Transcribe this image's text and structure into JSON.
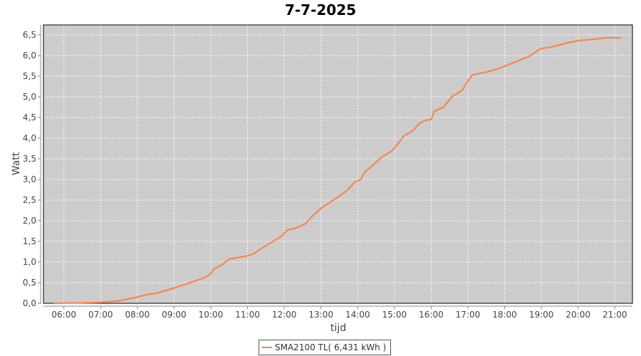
{
  "chart_data": {
    "type": "line",
    "title": "7-7-2025",
    "xlabel": "tijd",
    "ylabel": "Watt",
    "xlim": [
      "05:35",
      "21:30"
    ],
    "ylim": [
      0,
      6.75
    ],
    "grid": true,
    "legend_placement": "bottom",
    "x_ticks": [
      "06:00",
      "07:00",
      "08:00",
      "09:00",
      "10:00",
      "11:00",
      "12:00",
      "13:00",
      "14:00",
      "15:00",
      "16:00",
      "17:00",
      "18:00",
      "19:00",
      "20:00",
      "21:00"
    ],
    "y_ticks": [
      "0,0",
      "0,5",
      "1,0",
      "1,5",
      "2,0",
      "2,5",
      "3,0",
      "3,5",
      "4,0",
      "4,5",
      "5,0",
      "5,5",
      "6,0",
      "6,5"
    ],
    "series": [
      {
        "name": "SMA2100 TL( 6,431 kWh )",
        "color": "#ff7f3f",
        "x": [
          "05:43",
          "06:30",
          "07:00",
          "07:30",
          "08:00",
          "08:15",
          "08:30",
          "09:00",
          "09:30",
          "09:50",
          "10:00",
          "10:05",
          "10:20",
          "10:30",
          "11:00",
          "11:10",
          "11:25",
          "11:40",
          "11:55",
          "12:05",
          "12:20",
          "12:35",
          "12:45",
          "13:00",
          "13:20",
          "13:40",
          "13:55",
          "14:05",
          "14:10",
          "14:25",
          "14:40",
          "14:55",
          "15:05",
          "15:15",
          "15:30",
          "15:40",
          "15:50",
          "16:00",
          "16:05",
          "16:20",
          "16:35",
          "16:50",
          "17:00",
          "17:07",
          "17:30",
          "17:50",
          "18:00",
          "18:10",
          "18:30",
          "18:40",
          "18:55",
          "19:00",
          "19:15",
          "19:40",
          "20:00",
          "20:30",
          "20:45",
          "21:10"
        ],
        "values": [
          0,
          0.01,
          0.02,
          0.06,
          0.15,
          0.21,
          0.24,
          0.37,
          0.52,
          0.62,
          0.72,
          0.83,
          0.95,
          1.07,
          1.15,
          1.2,
          1.35,
          1.48,
          1.62,
          1.77,
          1.83,
          1.93,
          2.1,
          2.3,
          2.5,
          2.7,
          2.93,
          3.0,
          3.15,
          3.35,
          3.55,
          3.68,
          3.85,
          4.05,
          4.18,
          4.35,
          4.43,
          4.45,
          4.65,
          4.75,
          5.02,
          5.15,
          5.38,
          5.53,
          5.6,
          5.68,
          5.74,
          5.8,
          5.92,
          5.98,
          6.13,
          6.17,
          6.2,
          6.3,
          6.36,
          6.4,
          6.43,
          6.43
        ]
      }
    ]
  }
}
